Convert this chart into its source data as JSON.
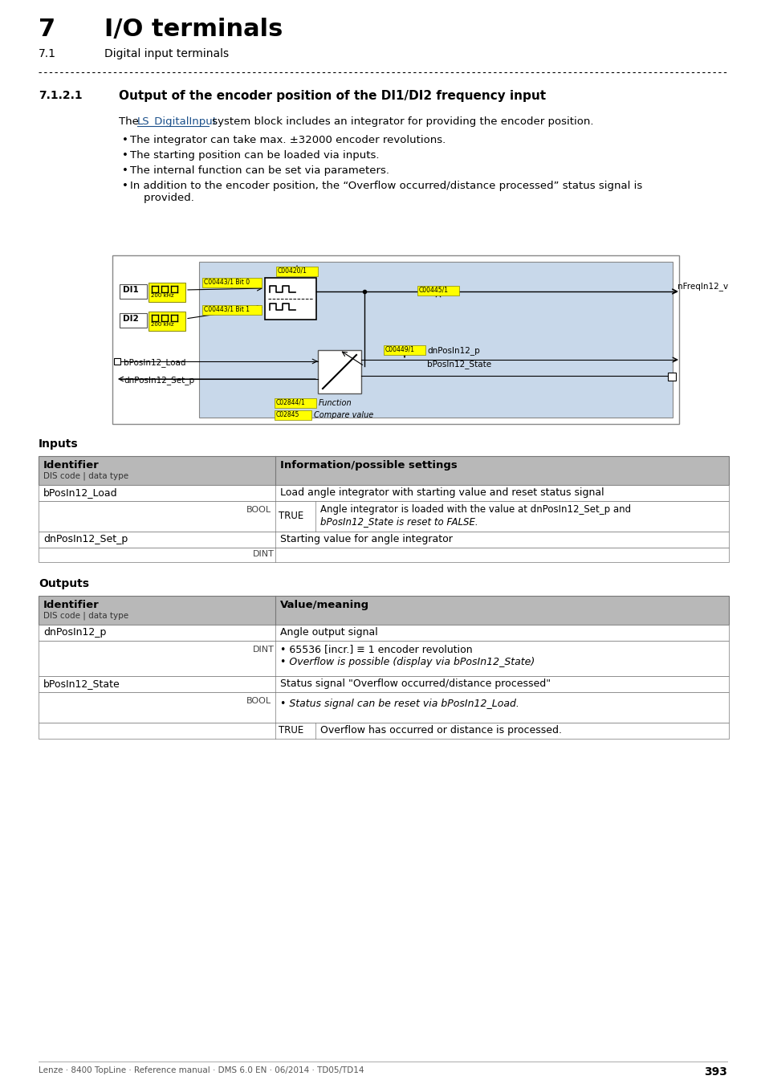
{
  "page_title_num": "7",
  "page_title": "I/O terminals",
  "page_subtitle_num": "7.1",
  "page_subtitle": "Digital input terminals",
  "section_num": "7.1.2.1",
  "section_title": "Output of the encoder position of the DI1/DI2 frequency input",
  "link_text": "LS_DigitalInput",
  "bullets": [
    "The integrator can take max. ±32000 encoder revolutions.",
    "The starting position can be loaded via inputs.",
    "The internal function can be set via parameters.",
    "In addition to the encoder position, the “Overflow occurred/distance processed” status signal is\n    provided."
  ],
  "inputs_label": "Inputs",
  "outputs_label": "Outputs",
  "footer_text": "Lenze · 8400 TopLine · Reference manual · DMS 6.0 EN · 06/2014 · TD05/TD14",
  "page_num": "393",
  "bg_color": "#ffffff",
  "diagram_bg": "#c8d8ea",
  "yellow_color": "#ffff00",
  "table_header_bg": "#b8b8b8",
  "sep_color": "#555555"
}
